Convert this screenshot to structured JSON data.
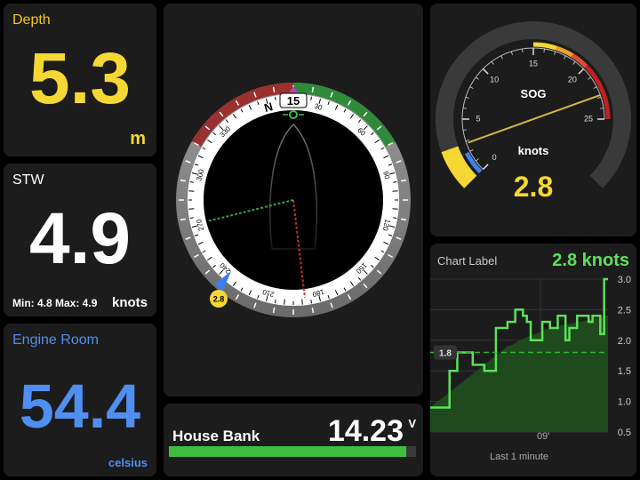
{
  "depth": {
    "title": "Depth",
    "value": "5.3",
    "unit": "m"
  },
  "stw": {
    "title": "STW",
    "value": "4.9",
    "minmax": "Min: 4.8 Max: 4.9",
    "unit": "knots"
  },
  "engine": {
    "title": "Engine Room",
    "value": "54.4",
    "unit": "celsius"
  },
  "compass": {
    "heading": "15",
    "north_label": "N",
    "ticks": [
      "30",
      "60",
      "90",
      "120",
      "150",
      "180",
      "210",
      "240",
      "270",
      "300",
      "330"
    ],
    "wind_badge": "2.8"
  },
  "battery": {
    "title": "House Bank",
    "value": "14.23",
    "unit": "V",
    "fill_fraction": 0.96
  },
  "sog": {
    "title": "SOG",
    "unit": "knots",
    "value": "2.8",
    "scale": [
      "0",
      "5",
      "10",
      "15",
      "20",
      "25"
    ],
    "max": 30,
    "needle_value": 2.8
  },
  "chart": {
    "title": "Chart Label",
    "value": "2.8 knots",
    "avg_label": "1.8",
    "x_label": "09'",
    "footer": "Last 1 minute",
    "y_ticks": [
      "3.0",
      "2.5",
      "2.0",
      "1.5",
      "1.0",
      "0.5"
    ]
  },
  "chart_data": {
    "type": "area",
    "title": "Chart Label",
    "ylim": [
      0.5,
      3.0
    ],
    "y_ticks": [
      3.0,
      2.5,
      2.0,
      1.5,
      1.0,
      0.5
    ],
    "x_tick": "09'",
    "xlabel": "Last 1 minute",
    "average": 1.8,
    "values": [
      0.9,
      0.9,
      0.9,
      0.9,
      0.9,
      1.5,
      1.5,
      1.8,
      1.8,
      1.8,
      1.8,
      1.6,
      1.6,
      1.6,
      1.5,
      1.5,
      1.5,
      2.2,
      2.2,
      2.2,
      2.3,
      2.3,
      2.5,
      2.5,
      2.4,
      2.3,
      2.0,
      2.0,
      2.0,
      2.3,
      2.3,
      2.2,
      2.2,
      2.4,
      2.4,
      2.0,
      2.2,
      2.2,
      2.4,
      2.4,
      2.4,
      2.3,
      2.4,
      2.4,
      2.1,
      3.0,
      3.0
    ],
    "area_values": [
      0.9,
      0.95,
      1.0,
      1.05,
      1.1,
      1.15,
      1.2,
      1.25,
      1.3,
      1.35,
      1.4,
      1.45,
      1.5,
      1.55,
      1.6,
      1.65,
      1.7,
      1.75,
      1.8,
      1.85,
      1.9,
      1.92,
      1.95,
      2.0,
      2.02,
      2.05,
      2.08,
      2.1,
      2.12,
      2.15,
      2.18,
      2.2,
      2.2,
      2.22,
      2.25,
      2.25,
      2.27,
      2.28,
      2.3,
      2.3,
      2.32,
      2.33,
      2.35,
      2.36,
      2.37,
      2.4,
      2.4
    ],
    "colors": {
      "line": "#5ee05a",
      "area": "#1e4a1e",
      "average": "#2fb52f"
    }
  }
}
